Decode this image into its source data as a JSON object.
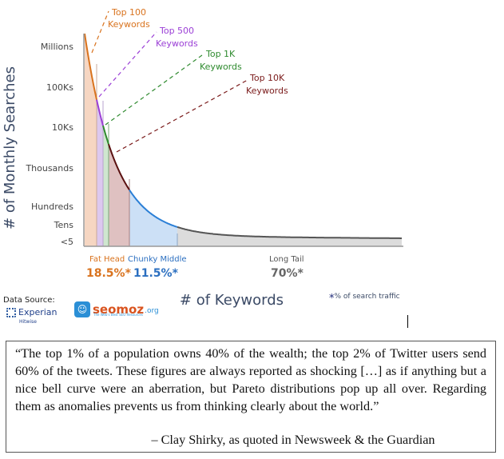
{
  "chart_data": {
    "type": "area",
    "xlabel": "# of Keywords",
    "ylabel": "# of Monthly Searches",
    "y_ticks": [
      "Millions",
      "100Ks",
      "10Ks",
      "Thousands",
      "Hundreds",
      "Tens",
      "<5"
    ],
    "callouts": [
      {
        "line1": "Top 100",
        "line2": "Keywords",
        "color": "#d9731e"
      },
      {
        "line1": "Top 500",
        "line2": "Keywords",
        "color": "#9b3fd6"
      },
      {
        "line1": "Top 1K",
        "line2": "Keywords",
        "color": "#2e8a2e"
      },
      {
        "line1": "Top 10K",
        "line2": "Keywords",
        "color": "#7a1a1a"
      }
    ],
    "segments": [
      {
        "name": "Fat Head",
        "share": "18.5%*",
        "name_color": "#d9731e",
        "share_color": "#d9731e"
      },
      {
        "name": "Chunky Middle",
        "share": "11.5%*",
        "name_color": "#2b6fc0",
        "share_color": "#2b6fc0"
      },
      {
        "name": "Long Tail",
        "share": "70%*",
        "name_color": "#555555",
        "share_color": "#666666"
      }
    ],
    "footnote": "% of search traffic",
    "grid": false
  },
  "sources": {
    "label": "Data Source:",
    "experian": "Experian",
    "hitwise": "Hitwise",
    "seomoz": "seomoz",
    "seomoz_org": ".org",
    "seomoz_tag": "The Web's Best SEO Resources"
  },
  "quote": {
    "text": "“The top 1% of a population owns 40% of the wealth; the top 2% of Twitter users send 60% of the tweets.  These figures are always reported as shocking […] as if anything but a nice bell curve were an aberration, but Pareto distributions pop up all over.  Regarding them as anomalies prevents us from thinking clearly about the world.”",
    "attribution": "– Clay Shirky, as quoted in Newsweek & the Guardian"
  }
}
